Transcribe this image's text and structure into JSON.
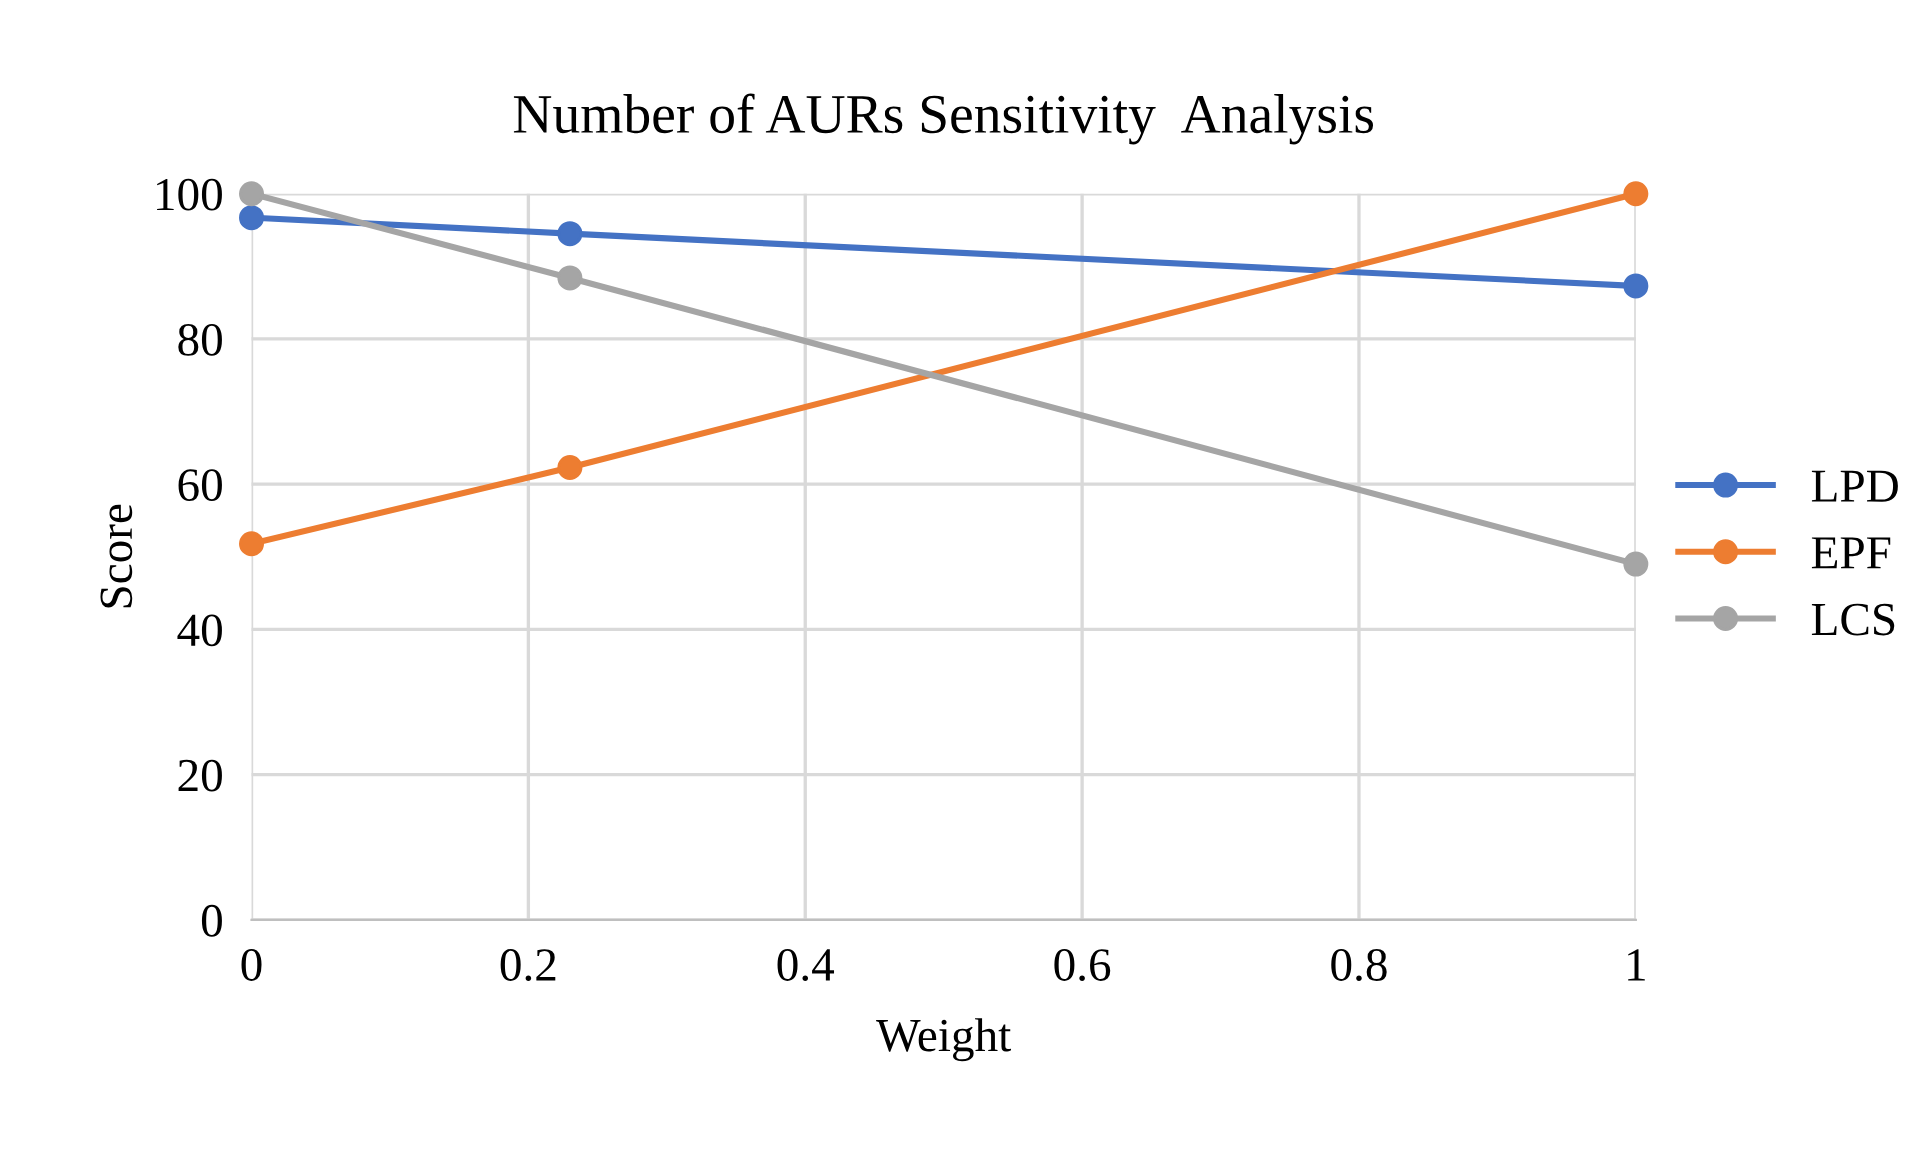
{
  "chart_data": {
    "type": "line",
    "title": "Number of AURs Sensitivity  Analysis",
    "xlabel": "Weight",
    "ylabel": "Score",
    "x": [
      0,
      0.23,
      1
    ],
    "series": [
      {
        "name": "LPD",
        "color": "#4472c4",
        "values": [
          96.7,
          94.5,
          87.3
        ]
      },
      {
        "name": "EPF",
        "color": "#ed7d31",
        "values": [
          51.8,
          62.3,
          100
        ]
      },
      {
        "name": "LCS",
        "color": "#a5a5a5",
        "values": [
          100,
          88.4,
          49.0
        ]
      }
    ],
    "xlim": [
      0,
      1
    ],
    "xticks": [
      0,
      0.2,
      0.4,
      0.6,
      0.8,
      1
    ],
    "ylim": [
      0,
      100
    ],
    "yticks": [
      0,
      20,
      40,
      60,
      80,
      100
    ],
    "grid": true,
    "legend": "right",
    "marker": "circle",
    "line_style": "solid"
  }
}
